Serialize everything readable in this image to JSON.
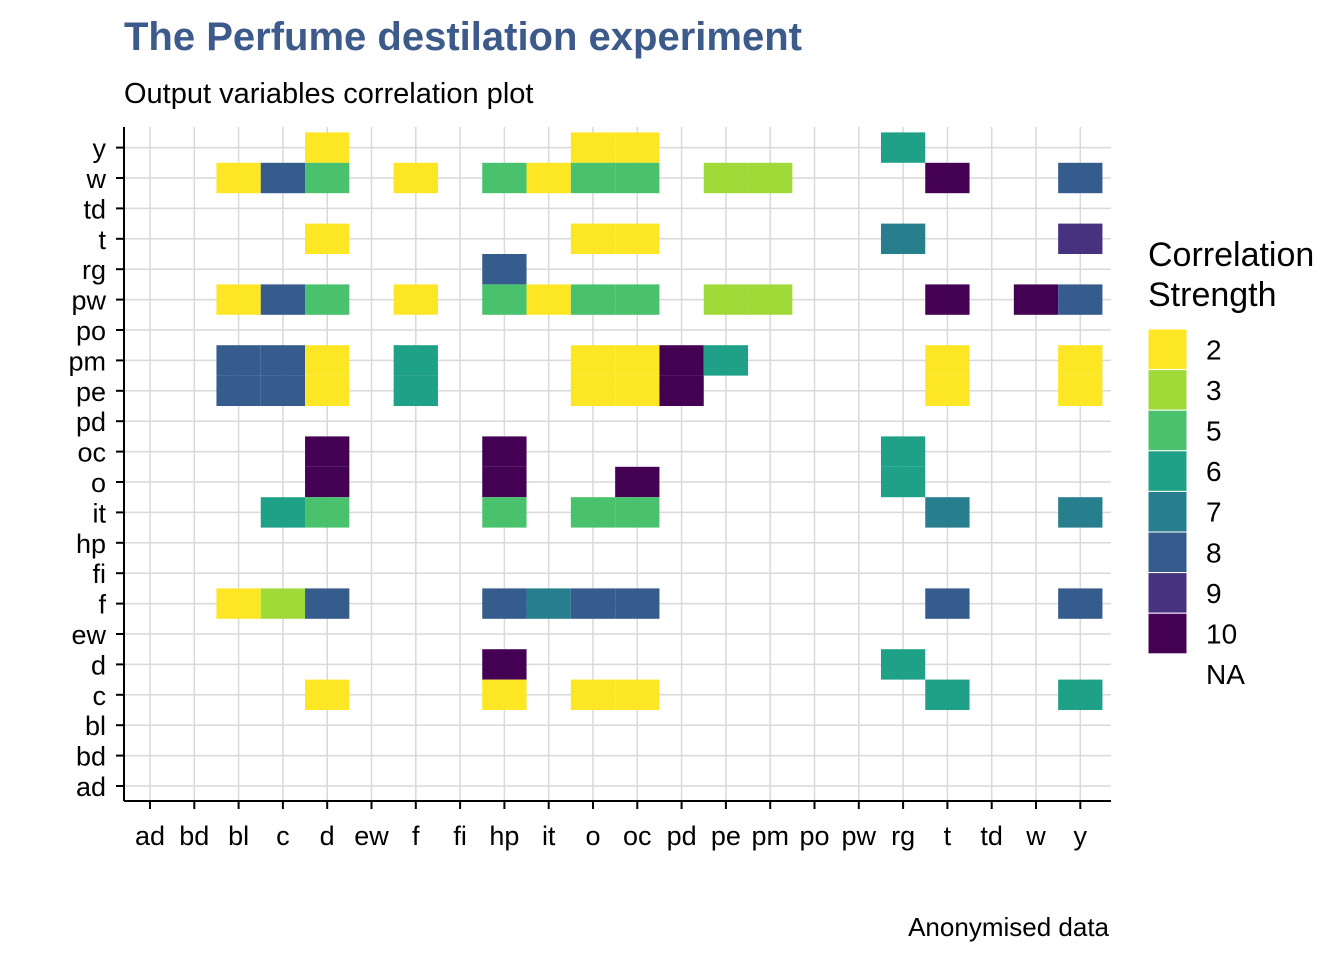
{
  "chart_data": {
    "type": "heatmap",
    "title": "The Perfume destilation experiment",
    "subtitle": "Output variables correlation plot",
    "caption": "Anonymised data",
    "legend_title": [
      "Correlation",
      "Strength"
    ],
    "legend_position": "right",
    "grid": true,
    "x_categories": [
      "ad",
      "bd",
      "bl",
      "c",
      "d",
      "ew",
      "f",
      "fi",
      "hp",
      "it",
      "o",
      "oc",
      "pd",
      "pe",
      "pm",
      "po",
      "pw",
      "rg",
      "t",
      "td",
      "w",
      "y"
    ],
    "y_categories": [
      "ad",
      "bd",
      "bl",
      "c",
      "d",
      "ew",
      "f",
      "fi",
      "hp",
      "it",
      "o",
      "oc",
      "pd",
      "pe",
      "pm",
      "po",
      "pw",
      "rg",
      "t",
      "td",
      "w",
      "y"
    ],
    "legend": [
      {
        "label": "2",
        "color": "#FDE725"
      },
      {
        "label": "3",
        "color": "#A0DA39"
      },
      {
        "label": "5",
        "color": "#4AC16D"
      },
      {
        "label": "6",
        "color": "#1FA187"
      },
      {
        "label": "7",
        "color": "#277F8E"
      },
      {
        "label": "8",
        "color": "#365C8D"
      },
      {
        "label": "9",
        "color": "#46327E"
      },
      {
        "label": "10",
        "color": "#440154"
      },
      {
        "label": "NA",
        "color": "none"
      }
    ],
    "cells": [
      {
        "x": "d",
        "y": "y",
        "value": 2
      },
      {
        "x": "o",
        "y": "y",
        "value": 2
      },
      {
        "x": "oc",
        "y": "y",
        "value": 2
      },
      {
        "x": "rg",
        "y": "y",
        "value": 6
      },
      {
        "x": "bl",
        "y": "w",
        "value": 2
      },
      {
        "x": "c",
        "y": "w",
        "value": 8
      },
      {
        "x": "d",
        "y": "w",
        "value": 5
      },
      {
        "x": "f",
        "y": "w",
        "value": 2
      },
      {
        "x": "hp",
        "y": "w",
        "value": 5
      },
      {
        "x": "it",
        "y": "w",
        "value": 2
      },
      {
        "x": "o",
        "y": "w",
        "value": 5
      },
      {
        "x": "oc",
        "y": "w",
        "value": 5
      },
      {
        "x": "pe",
        "y": "w",
        "value": 3
      },
      {
        "x": "pm",
        "y": "w",
        "value": 3
      },
      {
        "x": "t",
        "y": "w",
        "value": 10
      },
      {
        "x": "y",
        "y": "w",
        "value": 8
      },
      {
        "x": "d",
        "y": "t",
        "value": 2
      },
      {
        "x": "o",
        "y": "t",
        "value": 2
      },
      {
        "x": "oc",
        "y": "t",
        "value": 2
      },
      {
        "x": "rg",
        "y": "t",
        "value": 7
      },
      {
        "x": "y",
        "y": "t",
        "value": 9
      },
      {
        "x": "hp",
        "y": "rg",
        "value": 8
      },
      {
        "x": "bl",
        "y": "pw",
        "value": 2
      },
      {
        "x": "c",
        "y": "pw",
        "value": 8
      },
      {
        "x": "d",
        "y": "pw",
        "value": 5
      },
      {
        "x": "f",
        "y": "pw",
        "value": 2
      },
      {
        "x": "hp",
        "y": "pw",
        "value": 5
      },
      {
        "x": "it",
        "y": "pw",
        "value": 2
      },
      {
        "x": "o",
        "y": "pw",
        "value": 5
      },
      {
        "x": "oc",
        "y": "pw",
        "value": 5
      },
      {
        "x": "pe",
        "y": "pw",
        "value": 3
      },
      {
        "x": "pm",
        "y": "pw",
        "value": 3
      },
      {
        "x": "t",
        "y": "pw",
        "value": 10
      },
      {
        "x": "w",
        "y": "pw",
        "value": 10
      },
      {
        "x": "y",
        "y": "pw",
        "value": 8
      },
      {
        "x": "bl",
        "y": "pm",
        "value": 8
      },
      {
        "x": "c",
        "y": "pm",
        "value": 8
      },
      {
        "x": "d",
        "y": "pm",
        "value": 2
      },
      {
        "x": "f",
        "y": "pm",
        "value": 6
      },
      {
        "x": "o",
        "y": "pm",
        "value": 2
      },
      {
        "x": "oc",
        "y": "pm",
        "value": 2
      },
      {
        "x": "pd",
        "y": "pm",
        "value": 10
      },
      {
        "x": "pe",
        "y": "pm",
        "value": 6
      },
      {
        "x": "t",
        "y": "pm",
        "value": 2
      },
      {
        "x": "y",
        "y": "pm",
        "value": 2
      },
      {
        "x": "bl",
        "y": "pe",
        "value": 8
      },
      {
        "x": "c",
        "y": "pe",
        "value": 8
      },
      {
        "x": "d",
        "y": "pe",
        "value": 2
      },
      {
        "x": "f",
        "y": "pe",
        "value": 6
      },
      {
        "x": "o",
        "y": "pe",
        "value": 2
      },
      {
        "x": "oc",
        "y": "pe",
        "value": 2
      },
      {
        "x": "pd",
        "y": "pe",
        "value": 10
      },
      {
        "x": "t",
        "y": "pe",
        "value": 2
      },
      {
        "x": "y",
        "y": "pe",
        "value": 2
      },
      {
        "x": "d",
        "y": "oc",
        "value": 10
      },
      {
        "x": "hp",
        "y": "oc",
        "value": 10
      },
      {
        "x": "rg",
        "y": "oc",
        "value": 6
      },
      {
        "x": "d",
        "y": "o",
        "value": 10
      },
      {
        "x": "hp",
        "y": "o",
        "value": 10
      },
      {
        "x": "oc",
        "y": "o",
        "value": 10
      },
      {
        "x": "rg",
        "y": "o",
        "value": 6
      },
      {
        "x": "c",
        "y": "it",
        "value": 6
      },
      {
        "x": "d",
        "y": "it",
        "value": 5
      },
      {
        "x": "hp",
        "y": "it",
        "value": 5
      },
      {
        "x": "o",
        "y": "it",
        "value": 5
      },
      {
        "x": "oc",
        "y": "it",
        "value": 5
      },
      {
        "x": "t",
        "y": "it",
        "value": 7
      },
      {
        "x": "y",
        "y": "it",
        "value": 7
      },
      {
        "x": "bl",
        "y": "f",
        "value": 2
      },
      {
        "x": "c",
        "y": "f",
        "value": 3
      },
      {
        "x": "d",
        "y": "f",
        "value": 8
      },
      {
        "x": "hp",
        "y": "f",
        "value": 8
      },
      {
        "x": "it",
        "y": "f",
        "value": 7
      },
      {
        "x": "o",
        "y": "f",
        "value": 8
      },
      {
        "x": "oc",
        "y": "f",
        "value": 8
      },
      {
        "x": "t",
        "y": "f",
        "value": 8
      },
      {
        "x": "y",
        "y": "f",
        "value": 8
      },
      {
        "x": "hp",
        "y": "d",
        "value": 10
      },
      {
        "x": "rg",
        "y": "d",
        "value": 6
      },
      {
        "x": "d",
        "y": "c",
        "value": 2
      },
      {
        "x": "hp",
        "y": "c",
        "value": 2
      },
      {
        "x": "o",
        "y": "c",
        "value": 2
      },
      {
        "x": "oc",
        "y": "c",
        "value": 2
      },
      {
        "x": "t",
        "y": "c",
        "value": 6
      },
      {
        "x": "y",
        "y": "c",
        "value": 6
      }
    ]
  }
}
